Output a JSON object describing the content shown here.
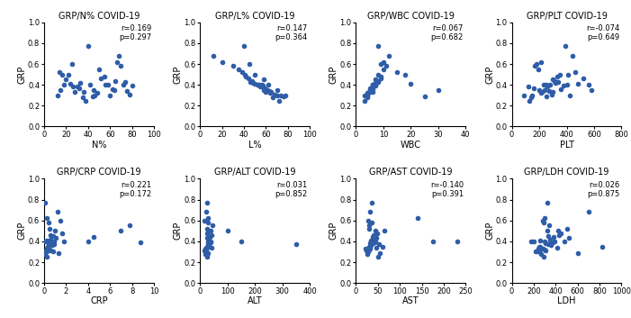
{
  "chart_data": [
    {
      "type": "scatter",
      "title": "GRP/N% COVID-19",
      "x_label": "N%",
      "y_label": "GRP",
      "x": [
        12,
        15,
        18,
        20,
        22,
        25,
        28,
        30,
        33,
        35,
        38,
        40,
        42,
        45,
        48,
        50,
        55,
        58,
        60,
        62,
        65,
        68,
        70,
        72,
        75,
        78,
        80,
        14,
        24,
        32,
        36,
        44,
        52,
        56,
        64,
        66,
        74,
        26,
        46,
        16
      ],
      "values": [
        0.3,
        0.35,
        0.4,
        0.45,
        0.5,
        0.6,
        0.33,
        0.38,
        0.42,
        0.28,
        0.25,
        0.77,
        0.4,
        0.35,
        0.32,
        0.55,
        0.48,
        0.4,
        0.3,
        0.36,
        0.44,
        0.68,
        0.58,
        0.4,
        0.34,
        0.31,
        0.39,
        0.52,
        0.41,
        0.37,
        0.33,
        0.29,
        0.46,
        0.4,
        0.35,
        0.62,
        0.43,
        0.38,
        0.3,
        0.5
      ],
      "xlim": [
        0,
        100
      ],
      "ylim": [
        0.0,
        1.0
      ],
      "xticks": [
        0,
        20,
        40,
        60,
        80,
        100
      ],
      "yticks": [
        0.0,
        0.2,
        0.4,
        0.6,
        0.8,
        1.0
      ],
      "annotation": [
        "r=0.169",
        "p=0.297"
      ],
      "color": "#2f5da8",
      "marker": "o"
    },
    {
      "type": "scatter",
      "title": "GRP/L% COVID-19",
      "x_label": "L%",
      "y_label": "GRP",
      "x": [
        78,
        70,
        62,
        58,
        50,
        45,
        60,
        55,
        48,
        66,
        72,
        40,
        52,
        58,
        64,
        35,
        42,
        56,
        74,
        60,
        47,
        12,
        30,
        54,
        63,
        68,
        57,
        38,
        50,
        59,
        65,
        76,
        44,
        53,
        61,
        20,
        46,
        57,
        70,
        41
      ],
      "values": [
        0.3,
        0.35,
        0.4,
        0.45,
        0.5,
        0.6,
        0.33,
        0.38,
        0.42,
        0.28,
        0.25,
        0.77,
        0.4,
        0.35,
        0.32,
        0.55,
        0.48,
        0.4,
        0.3,
        0.36,
        0.44,
        0.68,
        0.58,
        0.4,
        0.34,
        0.31,
        0.39,
        0.52,
        0.41,
        0.37,
        0.33,
        0.29,
        0.46,
        0.4,
        0.35,
        0.62,
        0.43,
        0.38,
        0.3,
        0.5
      ],
      "xlim": [
        0,
        100
      ],
      "ylim": [
        0.0,
        1.0
      ],
      "xticks": [
        0,
        20,
        40,
        60,
        80,
        100
      ],
      "yticks": [
        0.0,
        0.2,
        0.4,
        0.6,
        0.8,
        1.0
      ],
      "annotation": [
        "r=0.147",
        "p=0.364"
      ],
      "color": "#2f5da8",
      "marker": "o"
    },
    {
      "type": "scatter",
      "title": "GRP/WBC COVID-19",
      "x_label": "WBC",
      "y_label": "GRP",
      "x": [
        4,
        5,
        6,
        7,
        8,
        9,
        5,
        6,
        7,
        4,
        3,
        8,
        6,
        5,
        4,
        10,
        9,
        7,
        3,
        6,
        8,
        12,
        11,
        6,
        5,
        4,
        7,
        15,
        20,
        5,
        6,
        25,
        9,
        7,
        30,
        10,
        8,
        6,
        4,
        18
      ],
      "values": [
        0.3,
        0.35,
        0.4,
        0.45,
        0.5,
        0.6,
        0.33,
        0.38,
        0.42,
        0.28,
        0.25,
        0.77,
        0.4,
        0.35,
        0.32,
        0.55,
        0.48,
        0.4,
        0.3,
        0.36,
        0.44,
        0.68,
        0.58,
        0.4,
        0.34,
        0.31,
        0.39,
        0.52,
        0.41,
        0.37,
        0.33,
        0.29,
        0.46,
        0.4,
        0.35,
        0.62,
        0.43,
        0.38,
        0.3,
        0.5
      ],
      "xlim": [
        0,
        40
      ],
      "ylim": [
        0.0,
        1.0
      ],
      "xticks": [
        0,
        10,
        20,
        30,
        40
      ],
      "yticks": [
        0.0,
        0.2,
        0.4,
        0.6,
        0.8,
        1.0
      ],
      "annotation": [
        "r=0.067",
        "p=0.682"
      ],
      "color": "#2f5da8",
      "marker": "o"
    },
    {
      "type": "scatter",
      "title": "GRP/PLT COVID-19",
      "x_label": "PLT",
      "y_label": "GRP",
      "x": [
        150,
        200,
        250,
        300,
        350,
        180,
        220,
        260,
        320,
        140,
        130,
        390,
        280,
        240,
        210,
        190,
        330,
        400,
        420,
        360,
        310,
        440,
        170,
        230,
        270,
        290,
        380,
        460,
        480,
        160,
        300,
        250,
        520,
        560,
        580,
        210,
        340,
        120,
        90,
        410
      ],
      "values": [
        0.3,
        0.35,
        0.4,
        0.45,
        0.5,
        0.6,
        0.33,
        0.38,
        0.42,
        0.28,
        0.25,
        0.77,
        0.4,
        0.35,
        0.32,
        0.55,
        0.48,
        0.4,
        0.3,
        0.36,
        0.44,
        0.68,
        0.58,
        0.4,
        0.34,
        0.31,
        0.39,
        0.52,
        0.41,
        0.37,
        0.33,
        0.29,
        0.46,
        0.4,
        0.35,
        0.62,
        0.43,
        0.38,
        0.3,
        0.5
      ],
      "xlim": [
        0,
        800
      ],
      "ylim": [
        0.0,
        1.0
      ],
      "xticks": [
        0,
        200,
        400,
        600,
        800
      ],
      "yticks": [
        0.0,
        0.2,
        0.4,
        0.6,
        0.8,
        1.0
      ],
      "annotation": [
        "r=-0.074",
        "p=0.649"
      ],
      "color": "#2f5da8",
      "marker": "o"
    },
    {
      "type": "scatter",
      "title": "GRP/CRP COVID-19",
      "x_label": "CRP",
      "y_label": "GRP",
      "x": [
        0.1,
        0.3,
        0.5,
        0.8,
        1.0,
        1.5,
        0.2,
        0.4,
        0.6,
        0.1,
        0.2,
        0.1,
        0.9,
        0.3,
        0.5,
        7.8,
        1.6,
        4.0,
        0.2,
        0.7,
        4.5,
        1.2,
        0.4,
        1.8,
        0.3,
        0.6,
        8.8,
        0.5,
        0.2,
        0.9,
        0.4,
        1.3,
        0.6,
        0.1,
        0.3,
        0.2,
        1.1,
        0.5,
        0.8,
        7.0
      ],
      "values": [
        0.3,
        0.35,
        0.4,
        0.45,
        0.5,
        0.6,
        0.33,
        0.38,
        0.42,
        0.28,
        0.25,
        0.77,
        0.4,
        0.35,
        0.32,
        0.55,
        0.48,
        0.4,
        0.3,
        0.36,
        0.44,
        0.68,
        0.58,
        0.4,
        0.34,
        0.31,
        0.39,
        0.52,
        0.41,
        0.37,
        0.33,
        0.29,
        0.46,
        0.4,
        0.35,
        0.62,
        0.43,
        0.38,
        0.3,
        0.5
      ],
      "xlim": [
        0,
        10
      ],
      "ylim": [
        0.0,
        1.0
      ],
      "xticks": [
        0,
        2,
        4,
        6,
        8,
        10
      ],
      "yticks": [
        0.0,
        0.2,
        0.4,
        0.6,
        0.8,
        1.0
      ],
      "annotation": [
        "r=0.221",
        "p=0.172"
      ],
      "color": "#2f5da8",
      "marker": "o"
    },
    {
      "type": "scatter",
      "title": "GRP/ALT COVID-19",
      "x_label": "ALT",
      "y_label": "GRP",
      "x": [
        20,
        25,
        30,
        35,
        40,
        15,
        22,
        28,
        33,
        18,
        26,
        24,
        38,
        30,
        21,
        45,
        27,
        150,
        19,
        32,
        36,
        23,
        29,
        34,
        41,
        17,
        37,
        25,
        31,
        350,
        20,
        28,
        42,
        35,
        24,
        30,
        26,
        33,
        22,
        100
      ],
      "values": [
        0.3,
        0.35,
        0.4,
        0.45,
        0.5,
        0.6,
        0.33,
        0.38,
        0.42,
        0.28,
        0.25,
        0.77,
        0.4,
        0.35,
        0.32,
        0.55,
        0.48,
        0.4,
        0.3,
        0.36,
        0.44,
        0.68,
        0.58,
        0.4,
        0.34,
        0.31,
        0.39,
        0.52,
        0.41,
        0.37,
        0.33,
        0.29,
        0.46,
        0.4,
        0.35,
        0.62,
        0.43,
        0.38,
        0.3,
        0.5
      ],
      "xlim": [
        0,
        400
      ],
      "ylim": [
        0.0,
        1.0
      ],
      "xticks": [
        0,
        100,
        200,
        300,
        400
      ],
      "yticks": [
        0.0,
        0.2,
        0.4,
        0.6,
        0.8,
        1.0
      ],
      "annotation": [
        "r=0.031",
        "p=0.852"
      ],
      "color": "#2f5da8",
      "marker": "o"
    },
    {
      "type": "scatter",
      "title": "GRP/AST COVID-19",
      "x_label": "AST",
      "y_label": "GRP",
      "x": [
        25,
        30,
        35,
        40,
        45,
        28,
        32,
        38,
        42,
        26,
        50,
        36,
        44,
        33,
        29,
        30,
        48,
        230,
        27,
        34,
        39,
        31,
        37,
        41,
        46,
        24,
        43,
        30,
        35,
        52,
        22,
        55,
        40,
        175,
        60,
        140,
        47,
        33,
        28,
        65
      ],
      "values": [
        0.3,
        0.35,
        0.4,
        0.45,
        0.5,
        0.6,
        0.33,
        0.38,
        0.42,
        0.28,
        0.25,
        0.77,
        0.4,
        0.35,
        0.32,
        0.55,
        0.48,
        0.4,
        0.3,
        0.36,
        0.44,
        0.68,
        0.58,
        0.4,
        0.34,
        0.31,
        0.39,
        0.52,
        0.41,
        0.37,
        0.33,
        0.29,
        0.46,
        0.4,
        0.35,
        0.62,
        0.43,
        0.38,
        0.3,
        0.5
      ],
      "xlim": [
        0,
        250
      ],
      "ylim": [
        0.0,
        1.0
      ],
      "xticks": [
        0,
        50,
        100,
        150,
        200,
        250
      ],
      "yticks": [
        0.0,
        0.2,
        0.4,
        0.6,
        0.8,
        1.0
      ],
      "annotation": [
        "r=-0.140",
        "p=0.391"
      ],
      "color": "#2f5da8",
      "marker": "o"
    },
    {
      "type": "scatter",
      "title": "GRP/LDH COVID-19",
      "x_label": "LDH",
      "y_label": "GRP",
      "x": [
        220,
        260,
        300,
        330,
        420,
        280,
        240,
        310,
        350,
        270,
        290,
        320,
        180,
        250,
        300,
        340,
        450,
        390,
        230,
        360,
        380,
        700,
        290,
        200,
        410,
        310,
        370,
        500,
        260,
        330,
        280,
        600,
        430,
        480,
        820,
        300,
        520,
        350,
        250,
        320
      ],
      "values": [
        0.3,
        0.35,
        0.4,
        0.45,
        0.5,
        0.6,
        0.33,
        0.38,
        0.42,
        0.28,
        0.25,
        0.77,
        0.4,
        0.35,
        0.32,
        0.55,
        0.48,
        0.4,
        0.3,
        0.36,
        0.44,
        0.68,
        0.58,
        0.4,
        0.34,
        0.31,
        0.39,
        0.52,
        0.41,
        0.37,
        0.33,
        0.29,
        0.46,
        0.4,
        0.35,
        0.62,
        0.43,
        0.38,
        0.3,
        0.5
      ],
      "xlim": [
        0,
        1000
      ],
      "ylim": [
        0.0,
        1.0
      ],
      "xticks": [
        0,
        200,
        400,
        600,
        800,
        1000
      ],
      "yticks": [
        0.0,
        0.2,
        0.4,
        0.6,
        0.8,
        1.0
      ],
      "annotation": [
        "r=0.026",
        "p=0.875"
      ],
      "color": "#2f5da8",
      "marker": "o"
    }
  ]
}
